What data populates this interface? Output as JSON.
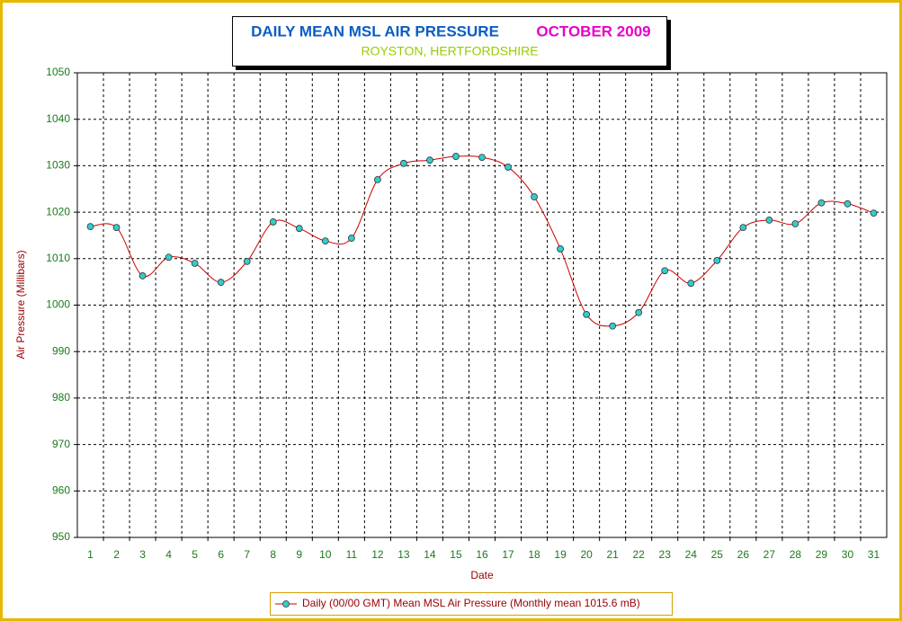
{
  "chart_data": {
    "type": "line",
    "title": "DAILY MEAN MSL AIR PRESSURE",
    "title_period": "OCTOBER 2009",
    "subtitle": "ROYSTON, HERTFORDSHIRE",
    "x_label": "Date",
    "y_label": "Air Pressure (Millibars)",
    "categories": [
      "1",
      "2",
      "3",
      "4",
      "5",
      "6",
      "7",
      "8",
      "9",
      "10",
      "11",
      "12",
      "13",
      "14",
      "15",
      "16",
      "17",
      "18",
      "19",
      "20",
      "21",
      "22",
      "23",
      "24",
      "25",
      "26",
      "27",
      "28",
      "29",
      "30",
      "31"
    ],
    "series": [
      {
        "name": "Daily (00/00 GMT) Mean MSL Air Pressure (Monthly mean 1015.6 mB)",
        "color": "#cc0000",
        "marker_color": "#33cccc",
        "values": [
          1016.9,
          1016.7,
          1006.3,
          1010.3,
          1009.0,
          1004.9,
          1009.4,
          1017.9,
          1016.5,
          1013.8,
          1014.4,
          1027.0,
          1030.5,
          1031.2,
          1032.0,
          1031.8,
          1029.7,
          1023.3,
          1012.1,
          998.0,
          995.5,
          998.4,
          1007.4,
          1004.7,
          1009.6,
          1016.7,
          1018.3,
          1017.5,
          1022.0,
          1021.8,
          1019.8
        ]
      }
    ],
    "ylim": [
      950,
      1050
    ],
    "yticks": [
      950,
      960,
      970,
      980,
      990,
      1000,
      1010,
      1020,
      1030,
      1040,
      1050
    ],
    "grid": true,
    "legend": "bottom"
  }
}
